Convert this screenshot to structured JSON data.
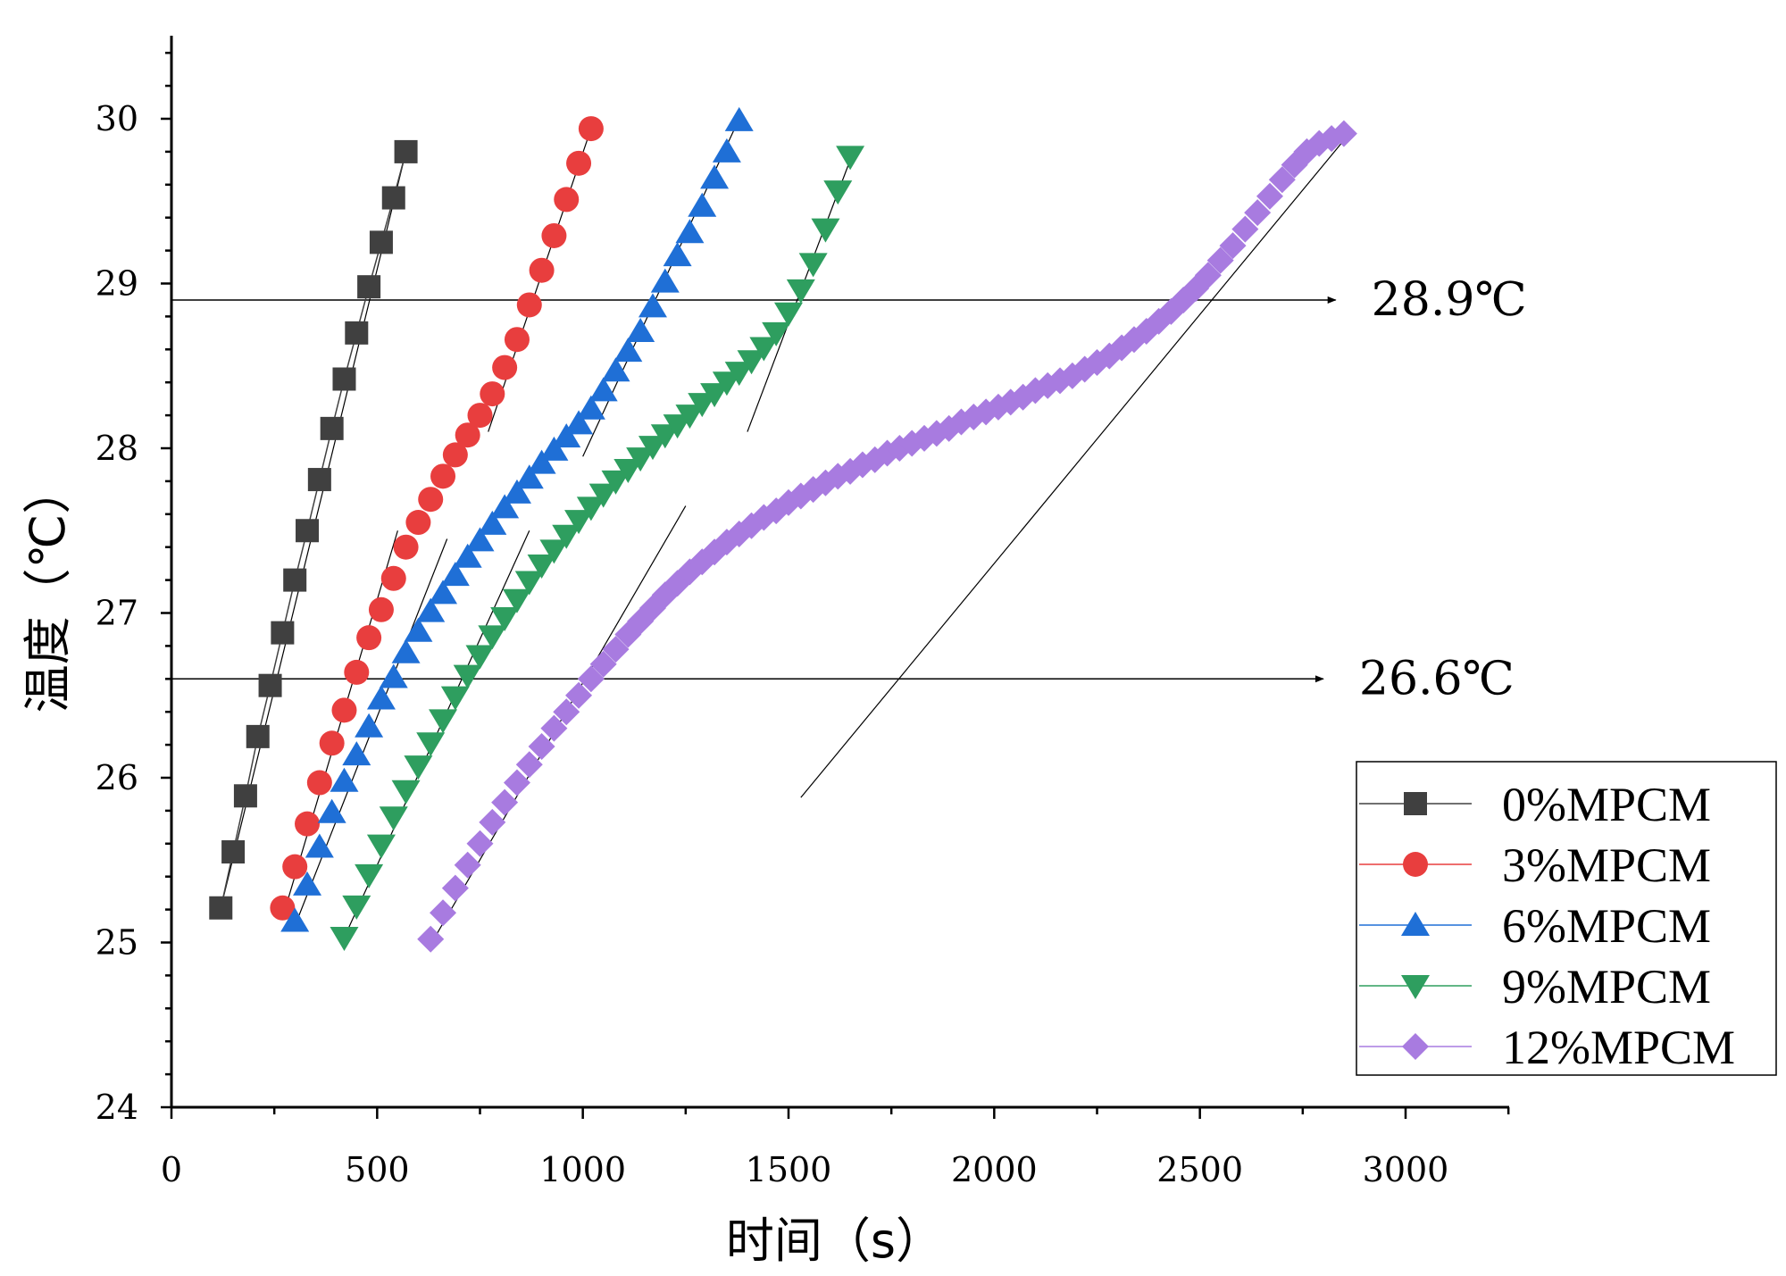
{
  "chart_data": {
    "type": "scatter",
    "title": "",
    "xlabel": "时间（s）",
    "ylabel": "温度（℃）",
    "xlim": [
      0,
      3250
    ],
    "ylim": [
      24,
      30.5
    ],
    "xticks": [
      0,
      500,
      1000,
      1500,
      2000,
      2500,
      3000
    ],
    "xtick_labels": [
      "0",
      "500",
      "1000",
      "1500",
      "2000",
      "2500",
      "3000"
    ],
    "yticks": [
      24,
      25,
      26,
      27,
      28,
      29,
      30
    ],
    "ytick_labels": [
      "24",
      "25",
      "26",
      "27",
      "28",
      "29",
      "30"
    ],
    "grid": false,
    "legend_position": "bottom-right",
    "series": [
      {
        "name": "0%MPCM",
        "color": "#404040",
        "marker": "square",
        "connected": true,
        "x": [
          120,
          150,
          180,
          210,
          240,
          270,
          300,
          330,
          360,
          390,
          420,
          450,
          480,
          510,
          540,
          570
        ],
        "y": [
          25.21,
          25.55,
          25.89,
          26.25,
          26.56,
          26.88,
          27.2,
          27.5,
          27.81,
          28.12,
          28.42,
          28.7,
          28.98,
          29.25,
          29.52,
          29.8
        ]
      },
      {
        "name": "3%MPCM",
        "color": "#e83e3e",
        "marker": "circle",
        "connected": false,
        "x": [
          270,
          300,
          330,
          360,
          390,
          420,
          450,
          480,
          510,
          540,
          570,
          600,
          630,
          660,
          690,
          720,
          750,
          780,
          810,
          840,
          870,
          900,
          930,
          960,
          990,
          1020
        ],
        "y": [
          25.21,
          25.46,
          25.72,
          25.97,
          26.21,
          26.41,
          26.64,
          26.85,
          27.02,
          27.21,
          27.4,
          27.55,
          27.69,
          27.83,
          27.96,
          28.08,
          28.2,
          28.33,
          28.49,
          28.66,
          28.87,
          29.08,
          29.29,
          29.51,
          29.73,
          29.94
        ]
      },
      {
        "name": "6%MPCM",
        "color": "#1f6fd6",
        "marker": "triangle-up",
        "connected": false,
        "x": [
          300,
          330,
          360,
          390,
          420,
          450,
          480,
          510,
          540,
          570,
          600,
          630,
          660,
          690,
          720,
          750,
          780,
          810,
          840,
          870,
          900,
          930,
          960,
          990,
          1020,
          1050,
          1080,
          1110,
          1140,
          1170,
          1200,
          1230,
          1260,
          1290,
          1320,
          1350,
          1380
        ],
        "y": [
          25.13,
          25.35,
          25.58,
          25.79,
          25.98,
          26.14,
          26.31,
          26.48,
          26.61,
          26.76,
          26.89,
          27.01,
          27.12,
          27.23,
          27.34,
          27.44,
          27.54,
          27.64,
          27.73,
          27.82,
          27.91,
          27.99,
          28.07,
          28.15,
          28.24,
          28.35,
          28.47,
          28.59,
          28.71,
          28.86,
          29.01,
          29.17,
          29.31,
          29.47,
          29.64,
          29.8,
          29.99
        ]
      },
      {
        "name": "9%MPCM",
        "color": "#2e9e5f",
        "marker": "triangle-down",
        "connected": false,
        "x": [
          420,
          450,
          480,
          510,
          540,
          570,
          600,
          630,
          660,
          690,
          720,
          750,
          780,
          810,
          840,
          870,
          900,
          930,
          960,
          990,
          1020,
          1050,
          1080,
          1110,
          1140,
          1170,
          1200,
          1230,
          1260,
          1290,
          1320,
          1350,
          1380,
          1410,
          1440,
          1470,
          1500,
          1530,
          1560,
          1590,
          1620,
          1650
        ],
        "y": [
          25.03,
          25.22,
          25.41,
          25.59,
          25.76,
          25.92,
          26.07,
          26.21,
          26.35,
          26.49,
          26.62,
          26.74,
          26.86,
          26.97,
          27.08,
          27.19,
          27.29,
          27.38,
          27.47,
          27.56,
          27.64,
          27.72,
          27.8,
          27.87,
          27.94,
          28.01,
          28.08,
          28.14,
          28.2,
          28.27,
          28.33,
          28.4,
          28.46,
          28.53,
          28.61,
          28.7,
          28.82,
          28.96,
          29.12,
          29.33,
          29.56,
          29.77
        ]
      },
      {
        "name": "12%MPCM",
        "color": "#a87be0",
        "marker": "diamond",
        "connected": false,
        "x": [
          630,
          660,
          690,
          720,
          750,
          780,
          810,
          840,
          870,
          900,
          930,
          960,
          990,
          1020,
          1050,
          1080,
          1110,
          1140,
          1170,
          1200,
          1230,
          1260,
          1290,
          1320,
          1350,
          1380,
          1410,
          1440,
          1470,
          1500,
          1530,
          1560,
          1590,
          1620,
          1650,
          1680,
          1710,
          1740,
          1770,
          1800,
          1830,
          1860,
          1890,
          1920,
          1950,
          1980,
          2010,
          2040,
          2070,
          2100,
          2130,
          2160,
          2190,
          2220,
          2250,
          2280,
          2310,
          2340,
          2370,
          2400,
          2430,
          2460,
          2490,
          2520,
          2550,
          2580,
          2610,
          2640,
          2670,
          2700,
          2730,
          2760,
          2790,
          2820,
          2850
        ],
        "y": [
          25.02,
          25.18,
          25.33,
          25.47,
          25.6,
          25.73,
          25.85,
          25.97,
          26.08,
          26.19,
          26.3,
          26.4,
          26.5,
          26.6,
          26.69,
          26.78,
          26.87,
          26.95,
          27.03,
          27.11,
          27.18,
          27.25,
          27.31,
          27.37,
          27.43,
          27.48,
          27.53,
          27.58,
          27.62,
          27.67,
          27.71,
          27.75,
          27.79,
          27.83,
          27.86,
          27.9,
          27.93,
          27.97,
          28.0,
          28.03,
          28.06,
          28.09,
          28.12,
          28.16,
          28.19,
          28.22,
          28.25,
          28.28,
          28.31,
          28.35,
          28.38,
          28.41,
          28.44,
          28.48,
          28.52,
          28.56,
          28.61,
          28.66,
          28.71,
          28.77,
          28.83,
          28.9,
          28.97,
          29.05,
          29.14,
          29.23,
          29.33,
          29.43,
          29.53,
          29.63,
          29.72,
          29.8,
          29.85,
          29.88,
          29.91
        ]
      }
    ],
    "fit_lines": [
      {
        "series": "0%MPCM",
        "x": [
          120,
          570
        ],
        "y": [
          25.21,
          29.8
        ]
      },
      {
        "series": "3%MPCM",
        "x": [
          270,
          550
        ],
        "y": [
          25.15,
          27.5
        ]
      },
      {
        "series": "3%MPCM",
        "x": [
          770,
          1020
        ],
        "y": [
          28.1,
          29.94
        ]
      },
      {
        "series": "6%MPCM",
        "x": [
          300,
          670
        ],
        "y": [
          25.1,
          27.45
        ]
      },
      {
        "series": "6%MPCM",
        "x": [
          1000,
          1380
        ],
        "y": [
          27.95,
          30.0
        ]
      },
      {
        "series": "9%MPCM",
        "x": [
          420,
          870
        ],
        "y": [
          25.03,
          27.5
        ]
      },
      {
        "series": "9%MPCM",
        "x": [
          1400,
          1650
        ],
        "y": [
          28.1,
          29.75
        ]
      },
      {
        "series": "12%MPCM",
        "x": [
          640,
          1250
        ],
        "y": [
          25.03,
          27.65
        ]
      },
      {
        "series": "12%MPCM",
        "x": [
          1530,
          2860
        ],
        "y": [
          25.88,
          29.9
        ]
      }
    ],
    "annotations": [
      {
        "label": "28.9℃",
        "y": 28.9,
        "x_start": 0,
        "x_end": 2830
      },
      {
        "label": "26.6℃",
        "y": 26.6,
        "x_start": 0,
        "x_end": 2800
      }
    ]
  }
}
